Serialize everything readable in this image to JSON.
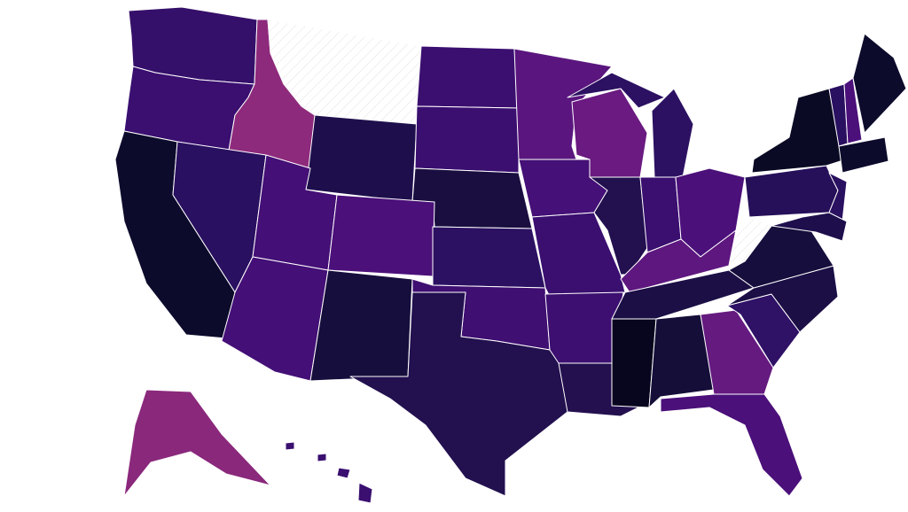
{
  "map": {
    "type": "choropleth",
    "region": "United States",
    "no_data_pattern": "hatched",
    "state_fills": {
      "WA": "#35106a",
      "OR": "#3a0f70",
      "ID": "#8e2a7c",
      "MT": "no-data",
      "WY": "#1e0f4c",
      "ND": "#3b0f70",
      "SD": "#3a0f70",
      "NE": "#1a0e40",
      "CA": "#0c0b2c",
      "NV": "#2a1060",
      "UT": "#440f76",
      "CO": "#4b107a",
      "AZ": "#440f76",
      "NM": "#160e3c",
      "KS": "#2c1162",
      "OK": "#3f0f72",
      "TX": "#22104f",
      "MN": "#5a167e",
      "IA": "#451077",
      "MO": "#3a0f70",
      "AR": "#3d0f71",
      "LA": "#24104f",
      "WI": "#6a1a80",
      "IL": "#22104f",
      "MI": "#2c1162",
      "MI-UP": "#2c1162",
      "IN": "#3a0f70",
      "OH": "#4b107a",
      "KY": "#5e177f",
      "TN": "#1c0f46",
      "MS": "#08061e",
      "AL": "#140e38",
      "GA": "#651a80",
      "FL": "#4b107a",
      "SC": "#2f1166",
      "NC": "#1c0f46",
      "VA": "#160e3c",
      "WV": "no-data",
      "PA": "#27105a",
      "NY": "#0a0a24",
      "NJ": "#2a1060",
      "MD": "#1e0f4c",
      "VT": "#2a1060",
      "NH": "#4b107a",
      "ME": "#0c0b2c",
      "MA": "#0c0b2c",
      "AK": "#8a287c",
      "HI": "#3a0f70"
    }
  }
}
